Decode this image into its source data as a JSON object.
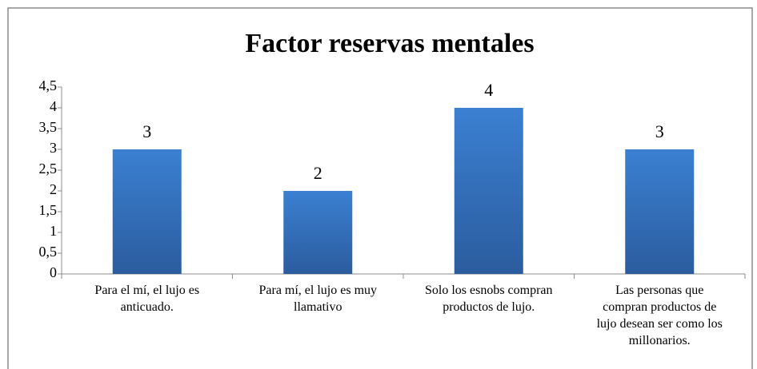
{
  "chart_data": {
    "type": "bar",
    "title": "Factor reservas mentales",
    "categories": [
      "Para el mí, el lujo es anticuado.",
      "Para mí, el lujo es muy llamativo",
      "Solo los esnobs compran productos de lujo.",
      "Las personas que compran productos de lujo desean  ser como los millonarios."
    ],
    "values": [
      3,
      2,
      4,
      3
    ],
    "color": "#3578c8",
    "ylim": [
      0,
      4.5
    ],
    "yticks": [
      0,
      {
        "value": 0.5,
        "label": "0,5"
      },
      1,
      {
        "value": 1.5,
        "label": "1,5"
      },
      2,
      {
        "value": 2.5,
        "label": "2,5"
      },
      3,
      {
        "value": 3.5,
        "label": "3,5"
      },
      4,
      {
        "value": 4.5,
        "label": "4,5"
      }
    ],
    "grid": false
  }
}
